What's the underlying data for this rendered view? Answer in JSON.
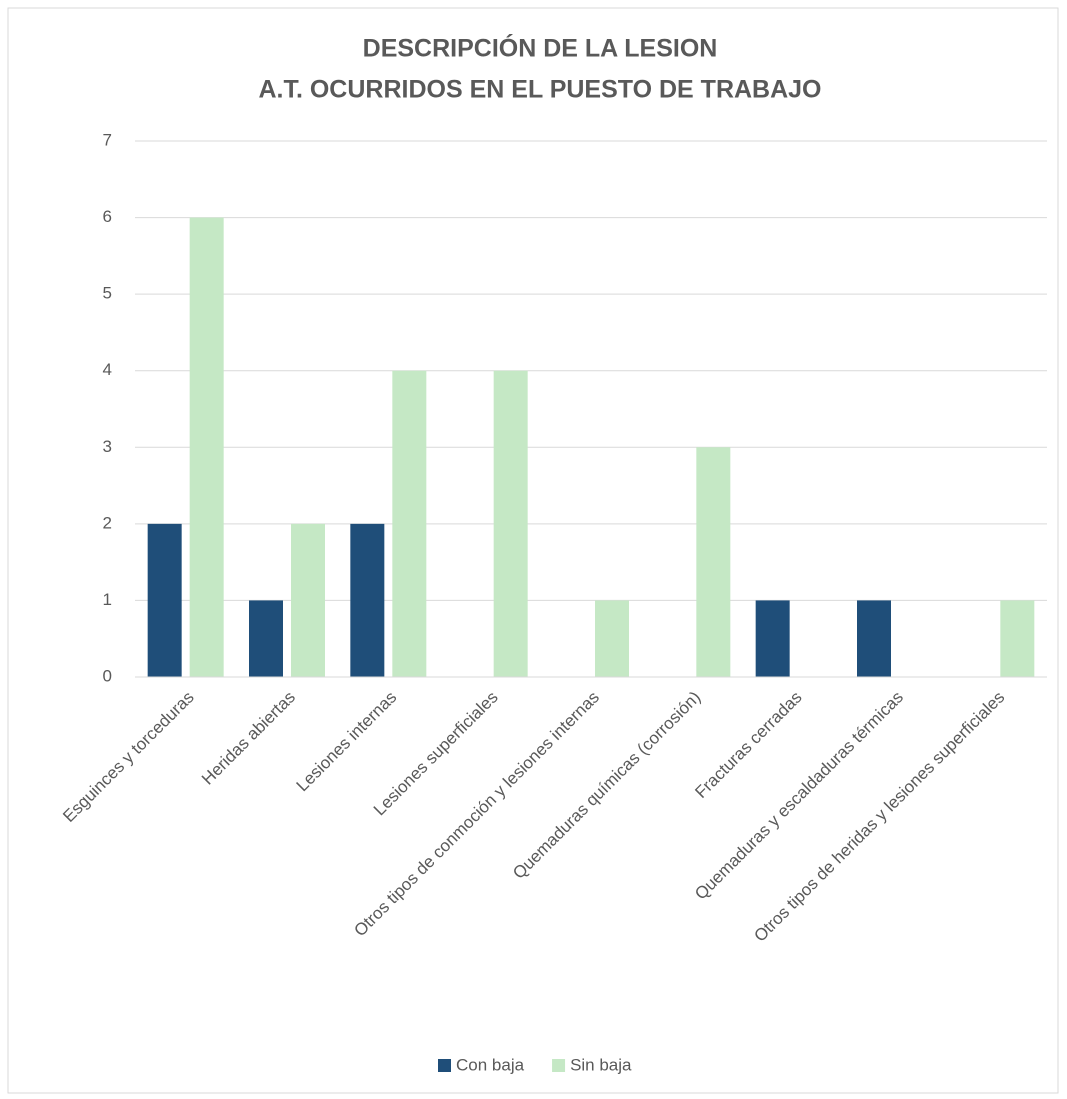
{
  "chart_data": {
    "type": "bar",
    "title": [
      "DESCRIPCIÓN DE LA LESION",
      "A.T. OCURRIDOS EN EL PUESTO DE TRABAJO"
    ],
    "categories": [
      "Esguinces y torceduras",
      "Heridas abiertas",
      "Lesiones internas",
      "Lesiones superficiales",
      "Otros tipos de conmoción y lesiones internas",
      "Quemaduras químicas (corrosión)",
      "Fracturas cerradas",
      "Quemaduras y escaldaduras térmicas",
      "Otros tipos de heridas y lesiones superficiales"
    ],
    "series": [
      {
        "name": "Con baja",
        "color": "#1f4e79",
        "values": [
          2,
          1,
          2,
          0,
          0,
          0,
          1,
          1,
          0
        ]
      },
      {
        "name": "Sin baja",
        "color": "#c5e8c5",
        "values": [
          6,
          2,
          4,
          4,
          1,
          3,
          0,
          0,
          1
        ]
      }
    ],
    "ylim": [
      0,
      7
    ],
    "yticks": [
      0,
      1,
      2,
      3,
      4,
      5,
      6,
      7
    ],
    "grid": true,
    "legend": "bottom"
  }
}
